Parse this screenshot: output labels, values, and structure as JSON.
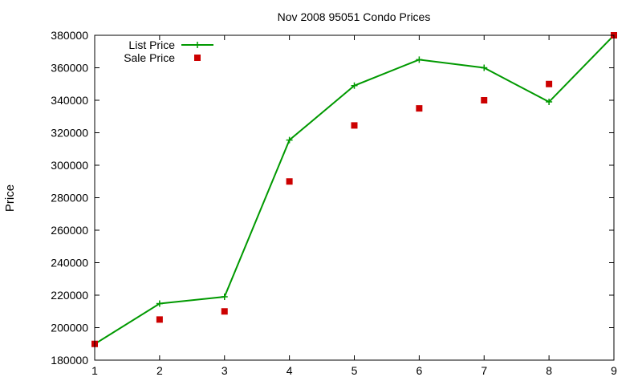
{
  "chart_data": {
    "type": "line",
    "title": "Nov 2008 95051 Condo Prices",
    "xlabel": "",
    "ylabel": "Price",
    "x": [
      1,
      2,
      3,
      4,
      5,
      6,
      7,
      8,
      9
    ],
    "xlim": [
      1,
      9
    ],
    "ylim": [
      180000,
      380000
    ],
    "xticks": [
      "1",
      "2",
      "3",
      "4",
      "5",
      "6",
      "7",
      "8",
      "9"
    ],
    "yticks": [
      "180000",
      "200000",
      "220000",
      "240000",
      "260000",
      "280000",
      "300000",
      "320000",
      "340000",
      "360000",
      "380000"
    ],
    "grid": false,
    "legend_position": "top-left",
    "series": [
      {
        "name": "List Price",
        "style": "line-with-plus",
        "color": "#009900",
        "values": [
          189900,
          214800,
          219000,
          315500,
          349000,
          365000,
          360000,
          339000,
          380000
        ]
      },
      {
        "name": "Sale Price",
        "style": "points-square",
        "color": "#cc0000",
        "values": [
          190000,
          205000,
          210000,
          290000,
          324500,
          335000,
          340000,
          350000,
          380000
        ]
      }
    ]
  }
}
